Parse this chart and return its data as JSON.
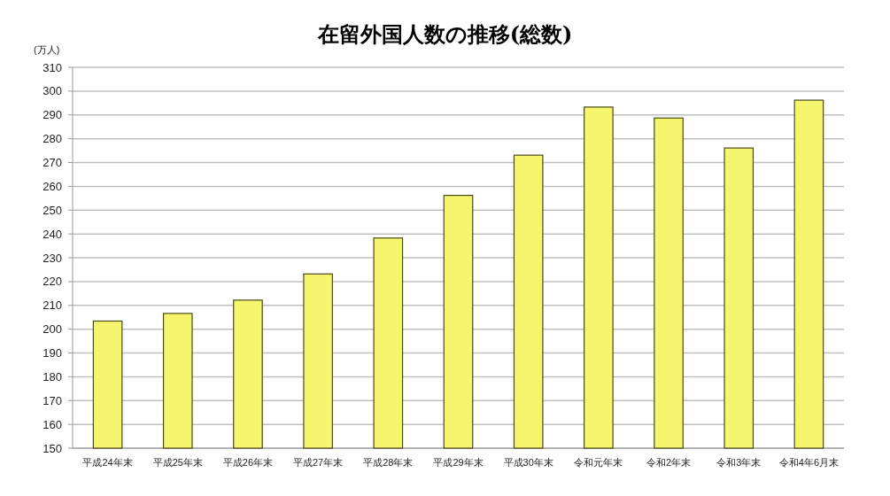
{
  "chart_data": {
    "type": "bar",
    "title": "在留外国人数の推移(総数)",
    "ylabel": "(万人)",
    "categories": [
      "平成24年末",
      "平成25年末",
      "平成26年末",
      "平成27年末",
      "平成28年末",
      "平成29年末",
      "平成30年末",
      "令和元年末",
      "令和2年末",
      "令和3年末",
      "令和4年6月末"
    ],
    "values": [
      203.4,
      206.6,
      212.2,
      223.2,
      238.3,
      256.2,
      273.1,
      293.3,
      288.7,
      276.1,
      296.2
    ],
    "color": "#f5f56e",
    "ylim": [
      150,
      310
    ],
    "yticks": [
      150,
      160,
      170,
      180,
      190,
      200,
      210,
      220,
      230,
      240,
      250,
      260,
      270,
      280,
      290,
      300,
      310
    ],
    "grid": "y"
  }
}
